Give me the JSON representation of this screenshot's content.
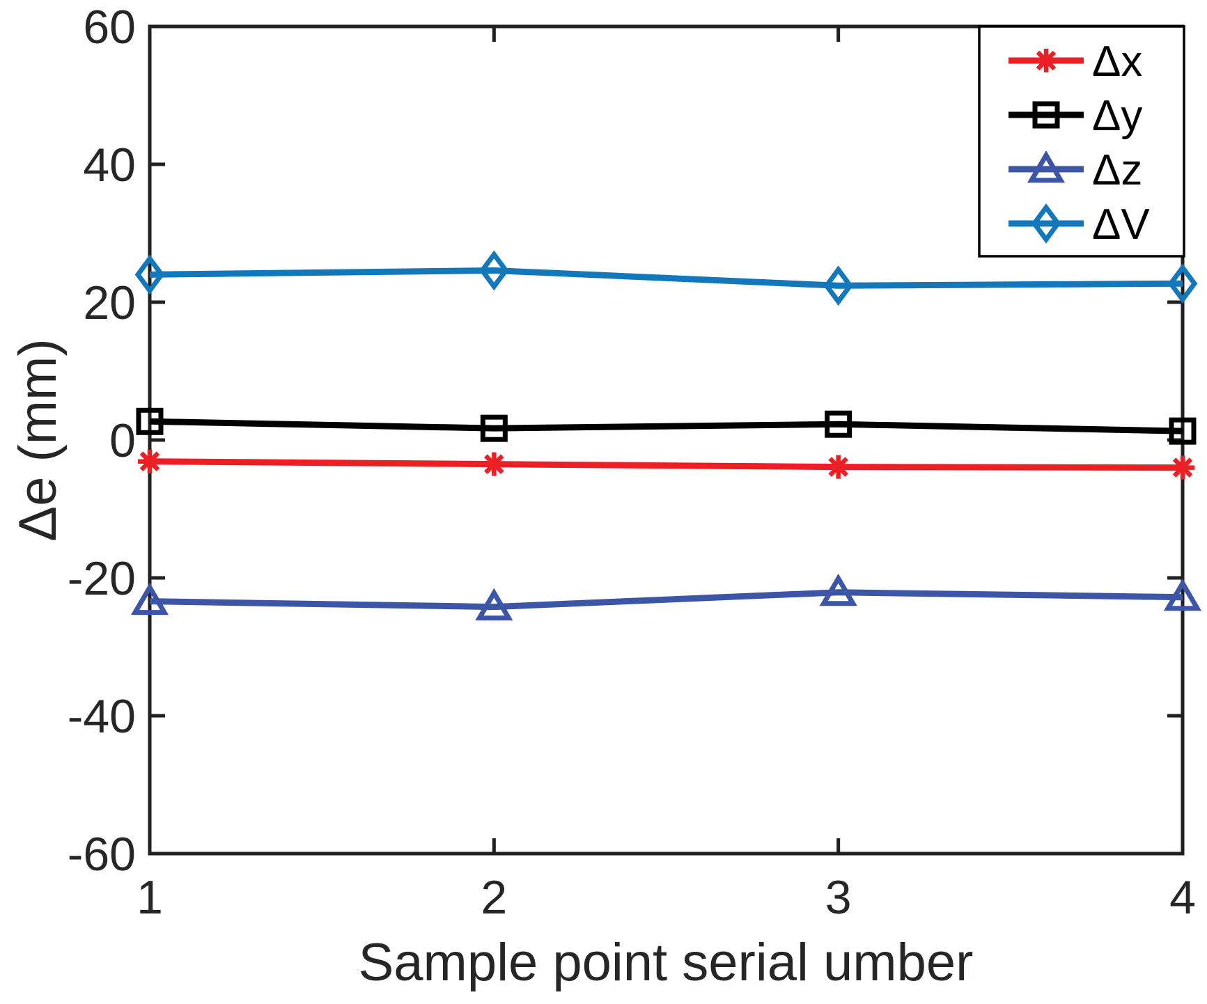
{
  "chart_data": {
    "type": "line",
    "title": "",
    "xlabel": "Sample point serial umber",
    "ylabel": "Δe (mm)",
    "x": [
      1,
      2,
      3,
      4
    ],
    "series": [
      {
        "name": "Δx",
        "marker": "asterisk",
        "color": "#EC2024",
        "values": [
          -3.1,
          -3.5,
          -3.9,
          -4.0
        ]
      },
      {
        "name": "Δy",
        "marker": "square",
        "color": "#000000",
        "values": [
          2.7,
          1.7,
          2.3,
          1.3
        ]
      },
      {
        "name": "Δz",
        "marker": "triangle",
        "color": "#3C55A6",
        "values": [
          -23.4,
          -24.2,
          -22.1,
          -22.8
        ]
      },
      {
        "name": "ΔV",
        "marker": "diamond",
        "color": "#1377BC",
        "values": [
          24.0,
          24.6,
          22.4,
          22.7
        ]
      }
    ],
    "xlim": [
      1,
      4
    ],
    "ylim": [
      -60,
      60
    ],
    "xticks": [
      "1",
      "2",
      "3",
      "4"
    ],
    "yticks": [
      "-60",
      "-40",
      "-20",
      "0",
      "20",
      "40",
      "60"
    ],
    "grid": "off",
    "legend_position": "top-right",
    "axis_color": "#202020"
  }
}
